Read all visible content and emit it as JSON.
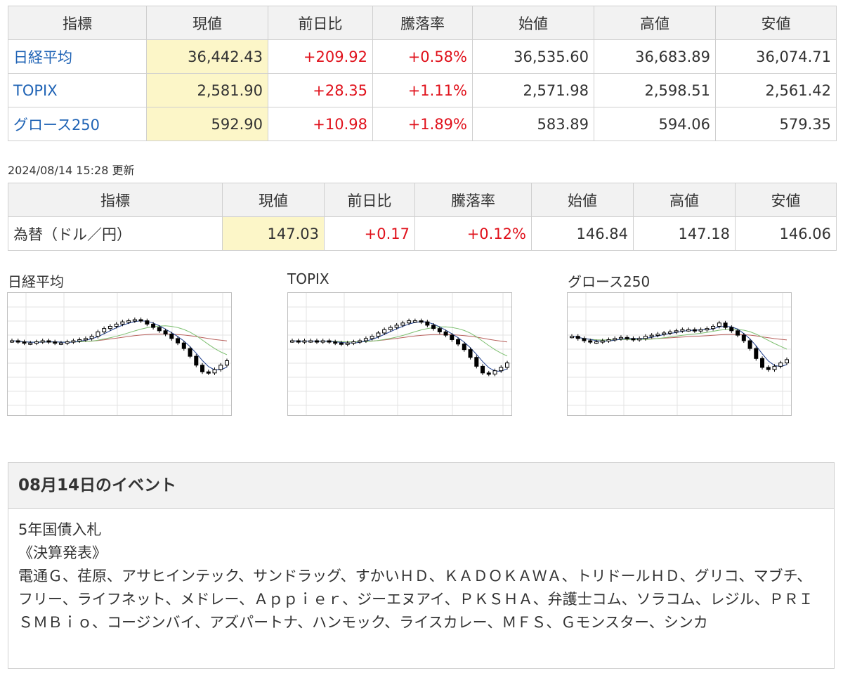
{
  "indices_table": {
    "headers": [
      "指標",
      "現値",
      "前日比",
      "騰落率",
      "始値",
      "高値",
      "安値"
    ],
    "rows": [
      {
        "name": "日経平均",
        "current": "36,442.43",
        "change": "+209.92",
        "rate": "+0.58%",
        "open": "36,535.60",
        "high": "36,683.89",
        "low": "36,074.71"
      },
      {
        "name": "TOPIX",
        "current": "2,581.90",
        "change": "+28.35",
        "rate": "+1.11%",
        "open": "2,571.98",
        "high": "2,598.51",
        "low": "2,561.42"
      },
      {
        "name": "グロース250",
        "current": "592.90",
        "change": "+10.98",
        "rate": "+1.89%",
        "open": "583.89",
        "high": "594.06",
        "low": "579.35"
      }
    ]
  },
  "updated": "2024/08/14 15:28 更新",
  "fx_table": {
    "headers": [
      "指標",
      "現値",
      "前日比",
      "騰落率",
      "始値",
      "高値",
      "安値"
    ],
    "rows": [
      {
        "name": "為替（ドル／円）",
        "current": "147.03",
        "change": "+0.17",
        "rate": "+0.12%",
        "open": "146.84",
        "high": "147.18",
        "low": "146.06"
      }
    ]
  },
  "colors": {
    "link": "#1f63b5",
    "up": "#e0111b",
    "current_bg": "#fcf6c8",
    "header_bg": "#f2f2f2",
    "ma_short": "#1f3f8f",
    "ma_mid": "#7cbf6f",
    "ma_long": "#b8615d"
  },
  "charts": [
    {
      "title": "日経平均",
      "chart_data": {
        "type": "line",
        "series": [
          {
            "values": [
              62,
              61,
              60,
              60,
              61,
              62,
              61,
              60,
              60,
              61,
              62,
              63,
              64,
              66,
              70,
              73,
              75,
              77,
              79,
              80,
              81,
              80,
              77,
              74,
              71,
              68,
              64,
              60,
              55,
              48,
              40,
              34,
              33,
              36,
              40,
              44
            ]
          }
        ]
      }
    },
    {
      "title": "TOPIX",
      "chart_data": {
        "type": "line",
        "series": [
          {
            "values": [
              62,
              61,
              62,
              62,
              61,
              62,
              61,
              60,
              59,
              60,
              61,
              62,
              64,
              66,
              69,
              72,
              74,
              76,
              78,
              80,
              80,
              79,
              76,
              73,
              70,
              67,
              63,
              59,
              54,
              47,
              39,
              33,
              32,
              35,
              38,
              42
            ]
          }
        ]
      }
    },
    {
      "title": "グロース250",
      "chart_data": {
        "type": "line",
        "series": [
          {
            "values": [
              66,
              64,
              62,
              61,
              61,
              62,
              63,
              64,
              65,
              64,
              63,
              64,
              66,
              67,
              68,
              69,
              70,
              71,
              72,
              72,
              71,
              72,
              73,
              75,
              78,
              74,
              71,
              67,
              62,
              55,
              46,
              38,
              36,
              39,
              42,
              45
            ]
          }
        ]
      }
    }
  ],
  "events": {
    "title": "08月14日のイベント",
    "line1": "5年国債入札",
    "line2": "《決算発表》",
    "list": "電通Ｇ、荏原、アサヒインテック、サンドラッグ、すかいＨＤ、ＫＡＤＯＫＡＷＡ、トリドールＨＤ、グリコ、マブチ、フリー、ライフネット、メドレー、Ａｐｐｉｅｒ、ジーエヌアイ、ＰＫＳＨＡ、弁護士コム、ソラコム、レジル、ＰＲＩＳＭＢｉｏ、コージンバイ、アズパートナ、ハンモック、ライスカレー、ＭＦＳ、Ｇモンスター、シンカ"
  }
}
